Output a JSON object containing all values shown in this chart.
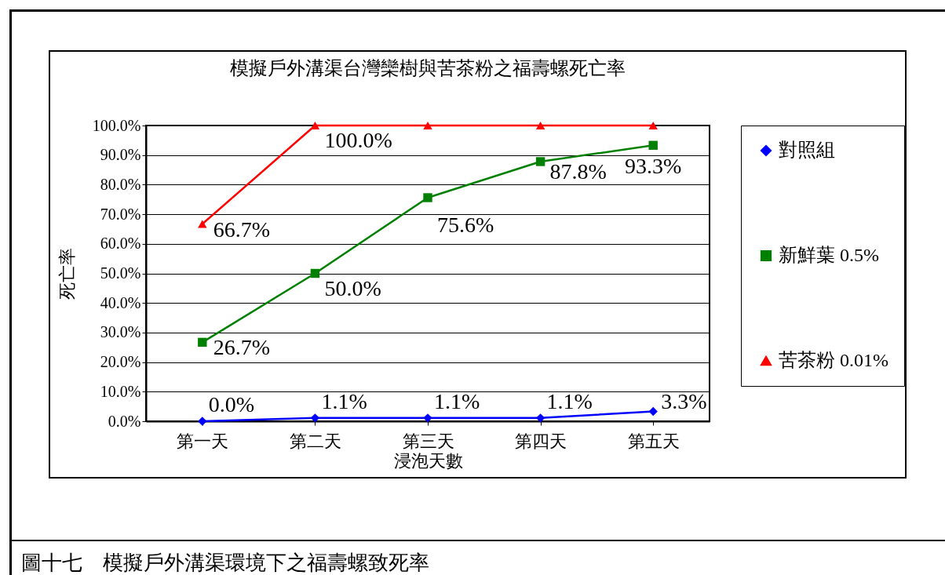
{
  "chart_data": {
    "type": "line",
    "title": "模擬戶外溝渠台灣欒樹與苦茶粉之福壽螺死亡率",
    "xlabel": "浸泡天數",
    "ylabel": "死亡率",
    "categories": [
      "第一天",
      "第二天",
      "第三天",
      "第四天",
      "第五天"
    ],
    "series": [
      {
        "name": "對照組",
        "color": "#0000ff",
        "marker": "diamond",
        "values": [
          0,
          1.1,
          1.1,
          1.1,
          3.3
        ],
        "value_labels": [
          "0.0%",
          "1.1%",
          "1.1%",
          "1.1%",
          "3.3%"
        ]
      },
      {
        "name": "新鮮葉 0.5%",
        "color": "#008000",
        "marker": "square",
        "values": [
          26.7,
          50.0,
          75.6,
          87.8,
          93.3
        ],
        "value_labels": [
          "26.7%",
          "50.0%",
          "75.6%",
          "87.8%",
          "93.3%"
        ]
      },
      {
        "name": "苦茶粉 0.01%",
        "color": "#ff0000",
        "marker": "triangle",
        "values": [
          66.7,
          100,
          100,
          100,
          100
        ],
        "value_labels": [
          "66.7%",
          "100.0%",
          null,
          null,
          null
        ]
      }
    ],
    "ylim": [
      0,
      100
    ],
    "yticks": [
      {
        "value": 0,
        "label": "0.0%"
      },
      {
        "value": 10,
        "label": "10.0%"
      },
      {
        "value": 20,
        "label": "20.0%"
      },
      {
        "value": 30,
        "label": "30.0%"
      },
      {
        "value": 40,
        "label": "40.0%"
      },
      {
        "value": 50,
        "label": "50.0%"
      },
      {
        "value": 60,
        "label": "60.0%"
      },
      {
        "value": 70,
        "label": "70.0%"
      },
      {
        "value": 80,
        "label": "80.0%"
      },
      {
        "value": 90,
        "label": "90.0%"
      },
      {
        "value": 100,
        "label": "100.0%"
      }
    ],
    "grid": "y",
    "legend": "right",
    "line_style": "solid",
    "annotations": [
      "圖十七　模擬戶外溝渠環境下之福壽螺致死率"
    ]
  }
}
